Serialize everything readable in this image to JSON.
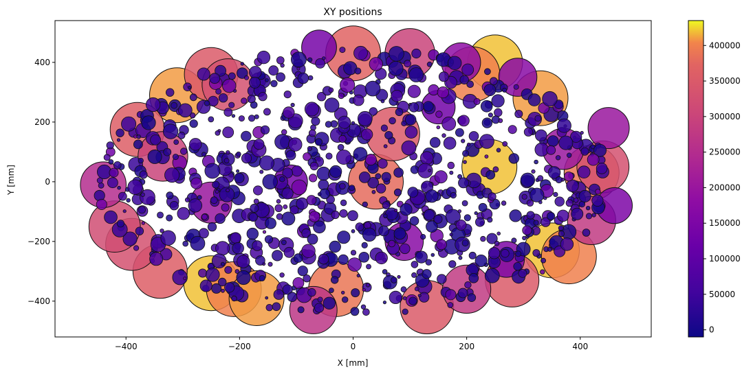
{
  "chart_data": {
    "type": "scatter",
    "title": "XY positions",
    "xlabel": "X [mm]",
    "ylabel": "Y [mm]",
    "xlim": [
      -525,
      525
    ],
    "ylim": [
      -520,
      540
    ],
    "xticks": [
      -400,
      -200,
      0,
      200,
      400
    ],
    "yticks": [
      -400,
      -200,
      0,
      200,
      400
    ],
    "colormap": "plasma",
    "colorbar": {
      "min": -10000,
      "max": 435000,
      "ticks": [
        0,
        50000,
        100000,
        150000,
        200000,
        250000,
        300000,
        350000,
        400000
      ]
    },
    "grid": false,
    "points": [
      {
        "x": 0,
        "y": 430,
        "v": 370000
      },
      {
        "x": -220,
        "y": 325,
        "v": 330000
      },
      {
        "x": -250,
        "y": 360,
        "v": 350000
      },
      {
        "x": -310,
        "y": 290,
        "v": 410000
      },
      {
        "x": -380,
        "y": 175,
        "v": 360000
      },
      {
        "x": -335,
        "y": 85,
        "v": 300000
      },
      {
        "x": -440,
        "y": -10,
        "v": 250000
      },
      {
        "x": -420,
        "y": -150,
        "v": 320000
      },
      {
        "x": -390,
        "y": -210,
        "v": 330000
      },
      {
        "x": -340,
        "y": -300,
        "v": 360000
      },
      {
        "x": -250,
        "y": -340,
        "v": 420000
      },
      {
        "x": -210,
        "y": -360,
        "v": 400000
      },
      {
        "x": -170,
        "y": -390,
        "v": 410000
      },
      {
        "x": -70,
        "y": -430,
        "v": 270000
      },
      {
        "x": -30,
        "y": -360,
        "v": 390000
      },
      {
        "x": 130,
        "y": -420,
        "v": 350000
      },
      {
        "x": 200,
        "y": -360,
        "v": 280000
      },
      {
        "x": 280,
        "y": -330,
        "v": 350000
      },
      {
        "x": 350,
        "y": -230,
        "v": 420000
      },
      {
        "x": 380,
        "y": -250,
        "v": 400000
      },
      {
        "x": 420,
        "y": -130,
        "v": 280000
      },
      {
        "x": 440,
        "y": 50,
        "v": 330000
      },
      {
        "x": 420,
        "y": 30,
        "v": 390000
      },
      {
        "x": 450,
        "y": 180,
        "v": 200000
      },
      {
        "x": 370,
        "y": 110,
        "v": 200000
      },
      {
        "x": 250,
        "y": 400,
        "v": 420000
      },
      {
        "x": 210,
        "y": 360,
        "v": 400000
      },
      {
        "x": 190,
        "y": 400,
        "v": 180000
      },
      {
        "x": 100,
        "y": 430,
        "v": 300000
      },
      {
        "x": 70,
        "y": 160,
        "v": 350000
      },
      {
        "x": 40,
        "y": 0,
        "v": 380000
      },
      {
        "x": 240,
        "y": 50,
        "v": 420000
      },
      {
        "x": 330,
        "y": 280,
        "v": 410000
      },
      {
        "x": 290,
        "y": 350,
        "v": 170000
      },
      {
        "x": -110,
        "y": 0,
        "v": 130000
      },
      {
        "x": -250,
        "y": -70,
        "v": 200000
      },
      {
        "x": 90,
        "y": -200,
        "v": 170000
      },
      {
        "x": 270,
        "y": -260,
        "v": 150000
      },
      {
        "x": 460,
        "y": -80,
        "v": 150000
      },
      {
        "x": -60,
        "y": 450,
        "v": 140000
      },
      {
        "x": 150,
        "y": 250,
        "v": 130000
      }
    ]
  }
}
